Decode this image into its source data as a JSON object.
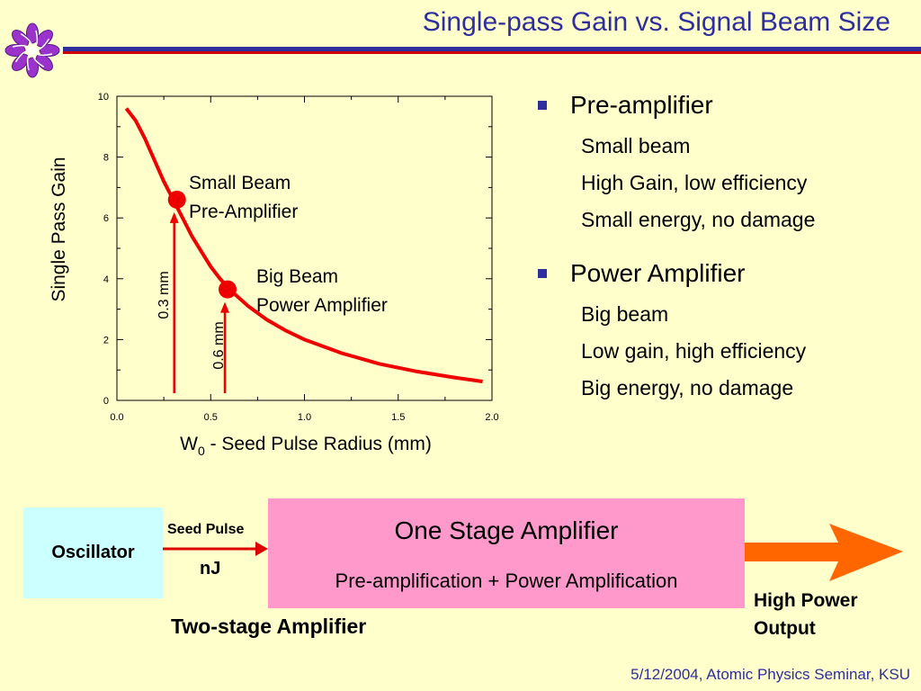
{
  "slide": {
    "title": "Single-pass Gain vs. Signal Beam Size",
    "footer": "5/12/2004, Atomic Physics Seminar, KSU",
    "logo_icon": "purple-pinwheel-logo"
  },
  "chart_data": {
    "type": "line",
    "xlabel_main": "W",
    "xlabel_sub": "0",
    "xlabel_rest": " - Seed Pulse Radius (mm)",
    "ylabel": "Single Pass Gain",
    "xlim": [
      0.0,
      2.0
    ],
    "ylim": [
      0,
      10
    ],
    "x_ticks": [
      "0.0",
      "0.5",
      "1.0",
      "1.5",
      "2.0"
    ],
    "y_ticks": [
      "0",
      "2",
      "4",
      "6",
      "8",
      "10"
    ],
    "grid": false,
    "series": [
      {
        "color": "#ee0000",
        "x": [
          0.05,
          0.1,
          0.15,
          0.2,
          0.25,
          0.3,
          0.35,
          0.4,
          0.45,
          0.5,
          0.55,
          0.6,
          0.7,
          0.8,
          0.9,
          1.0,
          1.2,
          1.4,
          1.6,
          1.8,
          1.95
        ],
        "y": [
          9.6,
          9.2,
          8.6,
          7.9,
          7.2,
          6.6,
          6.0,
          5.4,
          4.9,
          4.4,
          4.0,
          3.65,
          3.1,
          2.65,
          2.3,
          2.0,
          1.55,
          1.2,
          0.95,
          0.75,
          0.62
        ]
      }
    ],
    "points": [
      {
        "x": 0.32,
        "y": 6.6,
        "label_line1": "Small Beam",
        "label_line2": "Pre-Amplifier",
        "arrow_label": "0.3 mm"
      },
      {
        "x": 0.59,
        "y": 3.65,
        "label_line1": "Big Beam",
        "label_line2": "Power Amplifier",
        "arrow_label": "0.6 mm"
      }
    ]
  },
  "bullets": [
    {
      "head": "Pre-amplifier",
      "subs": [
        "Small beam",
        "High Gain, low efficiency",
        "Small energy, no damage"
      ]
    },
    {
      "head": "Power Amplifier",
      "subs": [
        "Big beam",
        "Low gain, high efficiency",
        "Big energy, no damage"
      ]
    }
  ],
  "diagram": {
    "oscillator": "Oscillator",
    "seed_pulse": "Seed Pulse",
    "nj": "nJ",
    "amp_title": "One Stage Amplifier",
    "amp_subtitle": "Pre-amplification + Power Amplification",
    "output_line1": "High Power",
    "output_line2": "Output",
    "caption": "Two-stage Amplifier",
    "colors": {
      "oscillator_box": "#ccffff",
      "amplifier_box": "#ff99cc",
      "output_arrow": "#ff6600",
      "seed_arrow": "#dd0000"
    }
  }
}
